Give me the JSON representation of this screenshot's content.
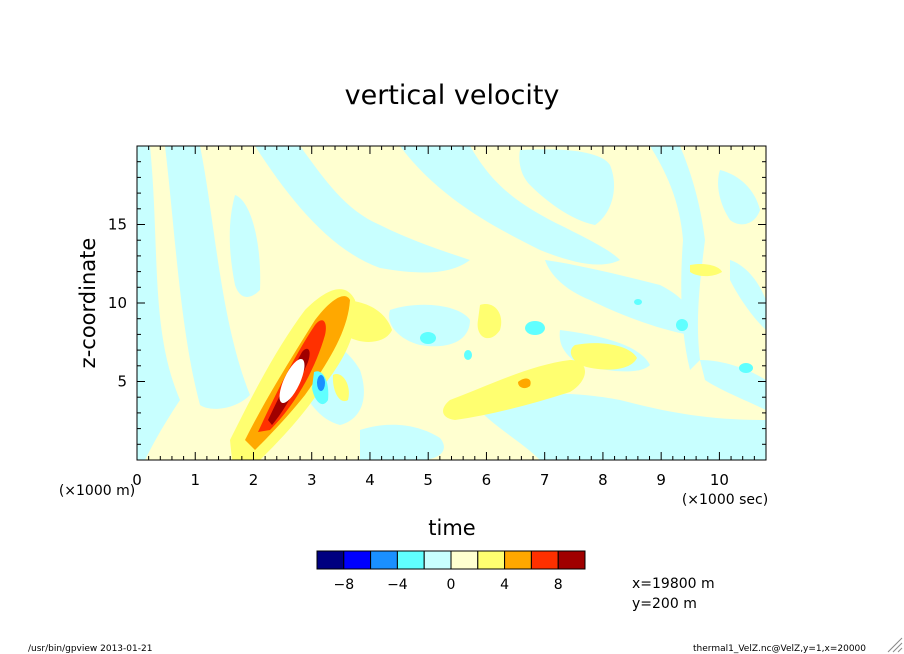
{
  "chart_data": {
    "type": "heatmap",
    "title": "vertical velocity",
    "xlabel": "time",
    "ylabel": "z-coordinate",
    "x_unit": "(×1000 sec)",
    "y_unit": "(×1000 m)",
    "xlim": [
      0,
      10.8
    ],
    "ylim": [
      0,
      20
    ],
    "x_ticks": [
      0,
      1,
      2,
      3,
      4,
      5,
      6,
      7,
      8,
      9,
      10
    ],
    "y_ticks": [
      5,
      10,
      15
    ],
    "colorbar": {
      "levels": [
        -10,
        -8,
        -6,
        -4,
        -2,
        0,
        2,
        4,
        6,
        8,
        10
      ],
      "tick_labels": [
        "−8",
        "−4",
        "0",
        "4",
        "8"
      ],
      "colors": [
        "#000080",
        "#0000ff",
        "#1a90ff",
        "#60ffff",
        "#c8ffff",
        "#ffffd0",
        "#ffff70",
        "#ffa800",
        "#ff3000",
        "#a00000"
      ]
    },
    "features": [
      {
        "kind": "positive",
        "level": 10,
        "x": 2.7,
        "z": 5.2
      },
      {
        "kind": "positive",
        "level": 8,
        "x": 2.6,
        "z": 4.8
      },
      {
        "kind": "positive",
        "level": 6,
        "x": 2.5,
        "z": 4.6
      },
      {
        "kind": "positive",
        "level": 4,
        "x": 2.7,
        "z": 5.5
      },
      {
        "kind": "negative",
        "level": -4,
        "x": 3.1,
        "z": 5.0
      },
      {
        "kind": "positive",
        "level": 2,
        "x": 6.5,
        "z": 5.0
      }
    ],
    "annotations": [
      "x=19800 m",
      "y=200 m"
    ]
  },
  "footer": {
    "left": "/usr/bin/gpview  2013-01-21",
    "right": "thermal1_VelZ.nc@VelZ,y=1,x=20000"
  }
}
